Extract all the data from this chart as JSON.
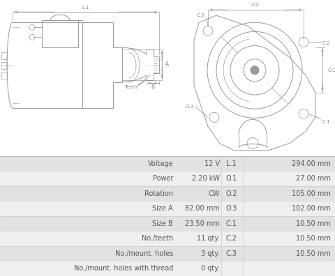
{
  "bg_color": "#ffffff",
  "table_bg_even": "#e2e2e2",
  "table_bg_odd": "#efefef",
  "table_border": "#cccccc",
  "draw_color": "#999999",
  "draw_color_dark": "#777777",
  "text_color": "#555555",
  "dim_color": "#888888",
  "rows": [
    [
      "Voltage",
      "12 V",
      "L.1",
      "294.00 mm"
    ],
    [
      "Power",
      "2.20 kW",
      "O.1",
      "27.00 mm"
    ],
    [
      "Rotation",
      "CW",
      "O.2",
      "105.00 mm"
    ],
    [
      "Size A",
      "82.00 mm",
      "O.3",
      "102.00 mm"
    ],
    [
      "Size B",
      "23.50 mm",
      "C.1",
      "10.50 mm"
    ],
    [
      "No./teeth",
      "11 qty.",
      "C.2",
      "10.50 mm"
    ],
    [
      "No./mount. holes",
      "3 qty.",
      "C.3",
      "10.50 mm"
    ],
    [
      "No./mount. holes with thread",
      "0 qty.",
      "",
      ""
    ]
  ],
  "font_size_table": 7.0,
  "lw": 0.7
}
